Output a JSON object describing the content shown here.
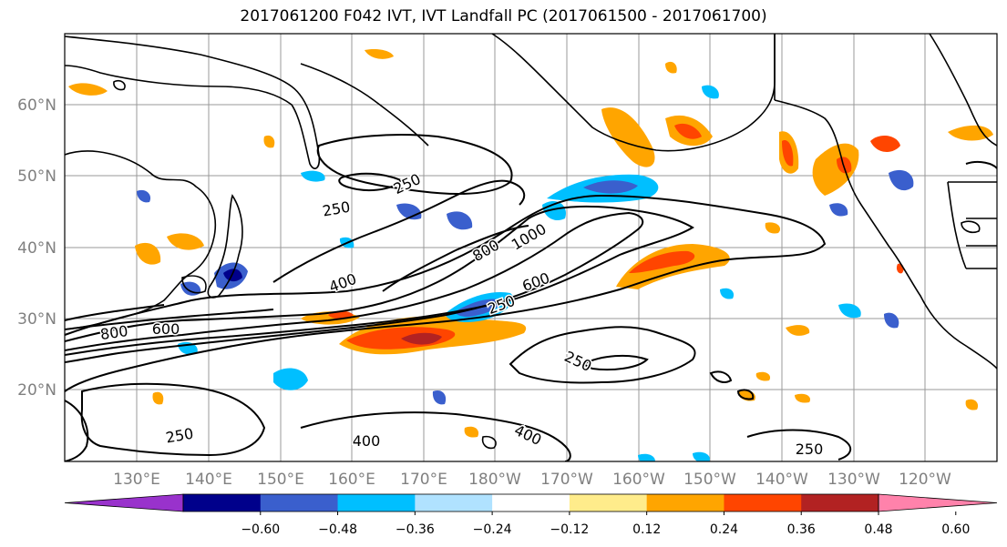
{
  "title": "2017061200 F042 IVT, IVT Landfall PC (2017061500 - 2017061700)",
  "lon_ticks": [
    "130°E",
    "140°E",
    "150°E",
    "160°E",
    "170°E",
    "180°W",
    "170°W",
    "160°W",
    "150°W",
    "140°W",
    "130°W",
    "120°W"
  ],
  "lat_ticks": [
    "60°N",
    "50°N",
    "40°N",
    "30°N",
    "20°N"
  ],
  "contour_labels": [
    {
      "text": "250"
    },
    {
      "text": "250"
    },
    {
      "text": "800"
    },
    {
      "text": "1000"
    },
    {
      "text": "400"
    },
    {
      "text": "600"
    },
    {
      "text": "250"
    },
    {
      "text": "800"
    },
    {
      "text": "600"
    },
    {
      "text": "250"
    },
    {
      "text": "250"
    },
    {
      "text": "400"
    },
    {
      "text": "400"
    },
    {
      "text": "250"
    }
  ],
  "colorbar": {
    "colors": [
      "#9932cc",
      "#00008b",
      "#3a5fcd",
      "#00bfff",
      "#b0e2ff",
      "#ffffff",
      "#ffec8b",
      "#ffa500",
      "#ff4500",
      "#b22222",
      "#ff82ab"
    ],
    "tick_labels": [
      "−0.60",
      "−0.48",
      "−0.36",
      "−0.24",
      "−0.12",
      "0.12",
      "0.24",
      "0.36",
      "0.48",
      "0.60"
    ]
  }
}
